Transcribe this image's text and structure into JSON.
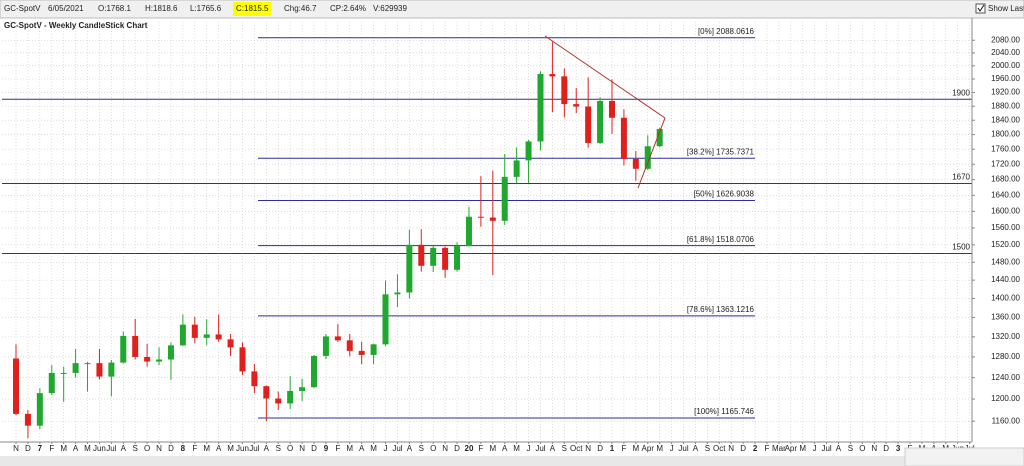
{
  "header": {
    "symbol": "GC-SpotV",
    "date": "6/05/2021",
    "open": "O:1768.1",
    "high": "H:1818.6",
    "low": "L:1765.6",
    "close": "C:1815.5",
    "change": "Chg:46.7",
    "change_pct": "CP:2.64%",
    "volume": "V:629939",
    "show_last": "Show Last"
  },
  "chart_data": {
    "type": "candlestick",
    "title": "GC-SpotV - Weekly CandleStick Chart",
    "log_scale": true,
    "grid": true,
    "up_color": "#1fa82e",
    "down_color": "#e0201c",
    "level_color": "#2e2e9c",
    "ylim": [
      1127,
      2139
    ],
    "yticks": [
      {
        "value": 2080,
        "label": "2080.00"
      },
      {
        "value": 2040,
        "label": "2040.00"
      },
      {
        "value": 2000,
        "label": "2000.00"
      },
      {
        "value": 1960,
        "label": "1960.00"
      },
      {
        "value": 1920,
        "label": "1920.00"
      },
      {
        "value": 1880,
        "label": "1880.00"
      },
      {
        "value": 1840,
        "label": "1840.00"
      },
      {
        "value": 1800,
        "label": "1800.00"
      },
      {
        "value": 1760,
        "label": "1760.00"
      },
      {
        "value": 1720,
        "label": "1720.00"
      },
      {
        "value": 1680,
        "label": "1680.00"
      },
      {
        "value": 1640,
        "label": "1640.00"
      },
      {
        "value": 1600,
        "label": "1600.00"
      },
      {
        "value": 1560,
        "label": "1560.00"
      },
      {
        "value": 1520,
        "label": "1520.00"
      },
      {
        "value": 1480,
        "label": "1480.00"
      },
      {
        "value": 1440,
        "label": "1440.00"
      },
      {
        "value": 1400,
        "label": "1400.00"
      },
      {
        "value": 1360,
        "label": "1360.00"
      },
      {
        "value": 1320,
        "label": "1320.00"
      },
      {
        "value": 1280,
        "label": "1280.00"
      },
      {
        "value": 1240,
        "label": "1240.00"
      },
      {
        "value": 1200,
        "label": "1200.00"
      },
      {
        "value": 1160,
        "label": "1160.00"
      }
    ],
    "categories": [
      "N",
      "D",
      "7",
      "F",
      "M",
      "A",
      "M",
      "Jun",
      "Jul",
      "A",
      "S",
      "O",
      "N",
      "D",
      "8",
      "F",
      "M",
      "A",
      "M",
      "Jun",
      "Jul",
      "A",
      "S",
      "O",
      "N",
      "D",
      "9",
      "F",
      "M",
      "A",
      "M",
      "J",
      "Jul",
      "A",
      "S",
      "O",
      "N",
      "D",
      "20",
      "F",
      "M",
      "A",
      "M",
      "J",
      "Jul",
      "A",
      "S",
      "Oct",
      "N",
      "D",
      "1",
      "F",
      "M",
      "Apr",
      "M",
      "J",
      "Jul",
      "A",
      "S",
      "Oct",
      "N",
      "D",
      "2",
      "F",
      "Mar",
      "Apr",
      "M",
      "J",
      "Jul",
      "A",
      "S",
      "O",
      "N",
      "D",
      "3",
      "F",
      "M",
      "A",
      "M",
      "Jun",
      "Jul"
    ],
    "year_labels": [
      "7",
      "8",
      "9",
      "20",
      "1",
      "2",
      "3"
    ],
    "open": [
      1277,
      1173,
      1152,
      1211,
      1249,
      1249,
      1268,
      1268,
      1242,
      1269,
      1322,
      1280,
      1271,
      1275,
      1303,
      1345,
      1318,
      1325,
      1315,
      1299,
      1252,
      1224,
      1201,
      1192,
      1215,
      1222,
      1282,
      1321,
      1313,
      1292,
      1284,
      1305,
      1409,
      1413,
      1520,
      1472,
      1513,
      1463,
      1517,
      1587,
      1585,
      1577,
      1687,
      1730,
      1781,
      1975,
      1968,
      1886,
      1879,
      1777,
      1895,
      1847,
      1734,
      1708,
      1768.1,
      null,
      null,
      null,
      null,
      null,
      null,
      null,
      null,
      null,
      null,
      null,
      null,
      null,
      null,
      null,
      null,
      null,
      null,
      null,
      null,
      null,
      null,
      null,
      null,
      null,
      null
    ],
    "high": [
      1305,
      1180,
      1220,
      1264,
      1261,
      1296,
      1270,
      1296,
      1274,
      1331,
      1357,
      1306,
      1299,
      1309,
      1366,
      1361,
      1356,
      1366,
      1326,
      1309,
      1266,
      1225,
      1214,
      1243,
      1238,
      1284,
      1326,
      1346,
      1326,
      1310,
      1306,
      1439,
      1453,
      1555,
      1557,
      1518,
      1516,
      1526,
      1611,
      1689,
      1703,
      1747,
      1765,
      1785,
      1983,
      2075,
      1992,
      1933,
      1965,
      1906,
      1959,
      1871,
      1755,
      1798,
      1818.6,
      null,
      null,
      null,
      null,
      null,
      null,
      null,
      null,
      null,
      null,
      null,
      null,
      null,
      null,
      null,
      null,
      null,
      null,
      null,
      null,
      null,
      null,
      null,
      null,
      null,
      null
    ],
    "low": [
      1171,
      1130,
      1146,
      1207,
      1195,
      1240,
      1214,
      1237,
      1205,
      1267,
      1275,
      1261,
      1264,
      1236,
      1302,
      1307,
      1303,
      1310,
      1282,
      1245,
      1211,
      1160,
      1180,
      1182,
      1196,
      1221,
      1276,
      1310,
      1281,
      1266,
      1266,
      1302,
      1382,
      1400,
      1459,
      1458,
      1445,
      1459,
      1517,
      1563,
      1451,
      1567,
      1670,
      1671,
      1757,
      1863,
      1848,
      1860,
      1764,
      1775,
      1802,
      1717,
      1677,
      1705,
      1765.6,
      null,
      null,
      null,
      null,
      null,
      null,
      null,
      null,
      null,
      null,
      null,
      null,
      null,
      null,
      null,
      null,
      null,
      null,
      null,
      null,
      null,
      null,
      null,
      null,
      null,
      null
    ],
    "close": [
      1173,
      1152,
      1211,
      1249,
      1249,
      1268,
      1268,
      1242,
      1269,
      1322,
      1280,
      1271,
      1275,
      1303,
      1345,
      1318,
      1325,
      1315,
      1299,
      1252,
      1224,
      1201,
      1192,
      1215,
      1222,
      1282,
      1321,
      1313,
      1292,
      1284,
      1305,
      1409,
      1413,
      1520,
      1472,
      1513,
      1463,
      1517,
      1587,
      1585,
      1577,
      1687,
      1730,
      1781,
      1975,
      1968,
      1886,
      1879,
      1777,
      1895,
      1847,
      1734,
      1708,
      1768,
      1815.5,
      null,
      null,
      null,
      null,
      null,
      null,
      null,
      null,
      null,
      null,
      null,
      null,
      null,
      null,
      null,
      null,
      null,
      null,
      null,
      null,
      null,
      null,
      null,
      null,
      null,
      null
    ],
    "fib_levels": [
      {
        "value": 2088.0616,
        "label": "[0%] 2088.0616"
      },
      {
        "value": 1735.7371,
        "label": "[38.2%] 1735.7371"
      },
      {
        "value": 1626.9038,
        "label": "[50%] 1626.9038"
      },
      {
        "value": 1518.0706,
        "label": "[61.8%] 1518.0706"
      },
      {
        "value": 1363.1216,
        "label": "[78.6%] 1363.1216"
      },
      {
        "value": 1165.746,
        "label": "[100%] 1165.746"
      }
    ],
    "levels": [
      1900,
      1670,
      1500
    ]
  }
}
